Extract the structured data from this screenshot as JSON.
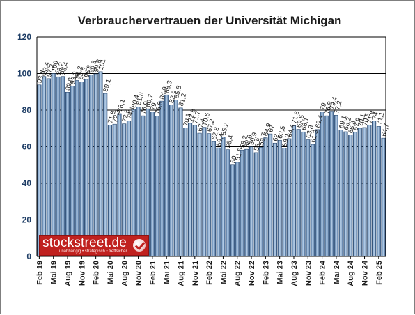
{
  "chart_data": {
    "type": "bar",
    "title": "Verbrauchervertrauen der Universität Michigan",
    "xlabel": "",
    "ylabel": "",
    "ylim": [
      0,
      120
    ],
    "yticks": [
      0,
      20,
      40,
      60,
      80,
      100,
      120
    ],
    "grid": true,
    "legend": "none",
    "x_tick_labels": [
      "Feb 19",
      "Mai 19",
      "Aug 19",
      "Nov 19",
      "Feb 20",
      "Mai 20",
      "Aug 20",
      "Nov 20",
      "Feb 21",
      "Mai 21",
      "Aug 21",
      "Nov 21",
      "Feb 22",
      "Mai 22",
      "Aug 22",
      "Nov 22",
      "Feb 23",
      "Mai 23",
      "Aug 23",
      "Nov 23",
      "Feb 24",
      "Mai 24",
      "Aug 24",
      "Nov 24",
      "Feb 25"
    ],
    "x_tick_every": 3,
    "values": [
      93.8,
      98.4,
      97.2,
      100,
      98.2,
      98.4,
      89.8,
      93.2,
      96.2,
      95.5,
      96.8,
      99.3,
      99.8,
      101,
      89.1,
      71.8,
      72.3,
      78.1,
      72.5,
      74.1,
      80.4,
      81.8,
      76.9,
      80.7,
      79,
      76.8,
      84.9,
      88.3,
      82.9,
      85.5,
      81.2,
      70.3,
      72.8,
      71.7,
      67.4,
      70.6,
      67.2,
      62.8,
      59.4,
      65.2,
      58.4,
      50,
      51.5,
      58.2,
      58.6,
      59.9,
      56.8,
      59.7,
      64.9,
      67,
      62,
      63.5,
      59.2,
      64.4,
      71.6,
      69.5,
      68.1,
      63.8,
      61.3,
      69.4,
      79,
      76.9,
      79.4,
      77.2,
      69.1,
      68.2,
      66.4,
      67.9,
      70.1,
      70.5,
      71.8,
      74,
      71.1,
      64.7
    ],
    "value_labels": [
      "93,8",
      "98,4",
      "97,2",
      "100",
      "98,2",
      "98,4",
      "89,8",
      "93,2",
      "96,2",
      "95,5",
      "96,8",
      "99,3",
      "99,8",
      "101",
      "89,1",
      "71,8",
      "72,3",
      "78,1",
      "72,5",
      "74,1",
      "80,4",
      "81,8",
      "76,9",
      "80,7",
      "79",
      "76,8",
      "84,9",
      "88,3",
      "82,9",
      "85,5",
      "81,2",
      "70,3",
      "72,8",
      "71,7",
      "67,4",
      "70,6",
      "67,2",
      "62,8",
      "59,4",
      "65,2",
      "58,4",
      "50",
      "51,5",
      "58,2",
      "58,6",
      "59,9",
      "56,8",
      "59,7",
      "64,9",
      "67",
      "62",
      "63,5",
      "59,2",
      "64,4",
      "71,6",
      "69,5",
      "68,1",
      "63,8",
      "61,3",
      "69,4",
      "79",
      "76,9",
      "79,4",
      "77,2",
      "69,1",
      "68,2",
      "66,4",
      "67,9",
      "70,1",
      "70,5",
      "71,8",
      "74",
      "71,1",
      "64,7"
    ]
  },
  "colors": {
    "bar": "#6f93bb",
    "bar_dark": "#2b4a70",
    "bar_light": "#b9d0e8",
    "axis": "#000000",
    "grid": "#000000",
    "ytick": "#1f3e66"
  },
  "logo": {
    "name": "stockstreet.de",
    "tagline": "unabhängig • strategisch • treffsicher",
    "icon": "checkmark-icon"
  }
}
